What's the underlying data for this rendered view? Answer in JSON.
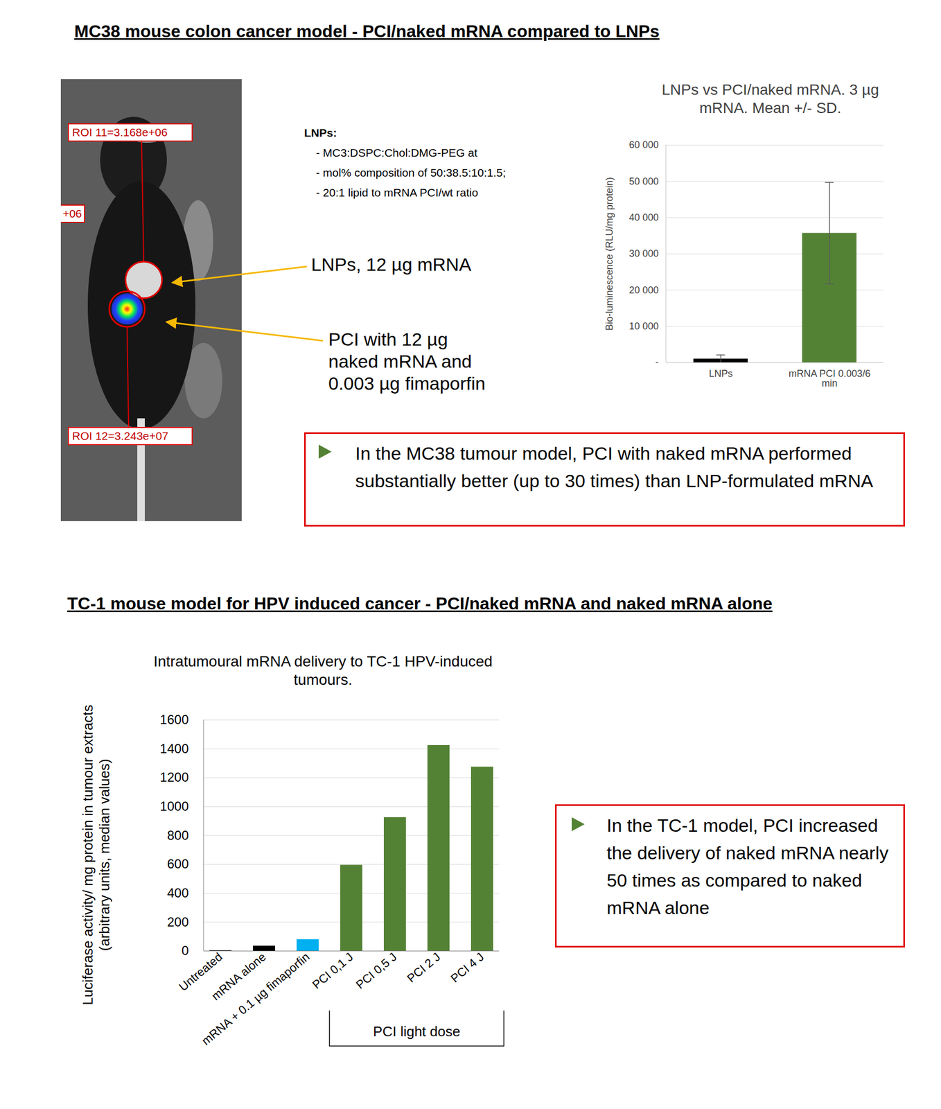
{
  "headings": [
    "MC38 mouse colon cancer model - PCI/naked mRNA compared to LNPs",
    "TC-1 mouse model for HPV induced cancer - PCI/naked mRNA and naked mRNA alone"
  ],
  "mouse_image": {
    "roi_labels": [
      "ROI 11=3.168e+06",
      "+06",
      "ROI 12=3.243e+07"
    ],
    "annotations": [
      "LNPs, 12 µg mRNA",
      "PCI with 12 µg naked mRNA and 0.003 µg fimaporfin"
    ]
  },
  "lnp_notes": {
    "title": "LNPs:",
    "lines": [
      "- MC3:DSPC:Chol:DMG-PEG at",
      "- mol% composition of 50:38.5:10:1.5;",
      "- 20:1 lipid to mRNA PCI/wt ratio"
    ]
  },
  "callouts": [
    "In the MC38 tumour model, PCI with naked mRNA performed substantially better (up to 30 times) than LNP-formulated mRNA",
    "In the TC-1 model, PCI increased the delivery of naked mRNA nearly 50 times as compared to naked mRNA alone"
  ],
  "chart_data": [
    {
      "type": "bar",
      "title": "LNPs vs PCI/naked mRNA. 3 µg mRNA. Mean +/- SD.",
      "y_label": "Bio-luminescence (RLU/mg protein)",
      "categories": [
        "LNPs",
        "mRNA PCI 0.003/6 min"
      ],
      "values": [
        1000,
        35700
      ],
      "errors": [
        1100,
        14000
      ],
      "colors": [
        "#000000",
        "#548235"
      ],
      "ylim": [
        0,
        60000
      ],
      "yticks": [
        {
          "value": 0,
          "label": "-"
        },
        {
          "value": 10000,
          "label": "10 000"
        },
        {
          "value": 20000,
          "label": "20 000"
        },
        {
          "value": 30000,
          "label": "30 000"
        },
        {
          "value": 40000,
          "label": "40 000"
        },
        {
          "value": 50000,
          "label": "50 000"
        },
        {
          "value": 60000,
          "label": "60 000"
        }
      ],
      "grid": true
    },
    {
      "type": "bar",
      "title": "Intratumoural mRNA delivery to TC-1 HPV-induced tumours.",
      "y_label": "Luciferase activity/ mg protein in tumour extracts (arbitrary units, median values)",
      "categories": [
        "Untreated",
        "mRNA alone",
        "mRNA + 0.1 µg fimaporfin",
        "PCI 0,1 J",
        "PCI 0,5 J",
        "PCI 2 J",
        "PCI 4 J"
      ],
      "values": [
        3,
        35,
        80,
        595,
        925,
        1425,
        1275
      ],
      "colors": [
        "#000000",
        "#000000",
        "#00b0f0",
        "#548235",
        "#548235",
        "#548235",
        "#548235"
      ],
      "ylim": [
        0,
        1600
      ],
      "yticks": [
        0,
        200,
        400,
        600,
        800,
        1000,
        1200,
        1400,
        1600
      ],
      "grid": true,
      "annotations": [
        {
          "text": "PCI light dose",
          "from": "PCI 0,1 J",
          "to": "PCI 4 J"
        }
      ]
    }
  ]
}
